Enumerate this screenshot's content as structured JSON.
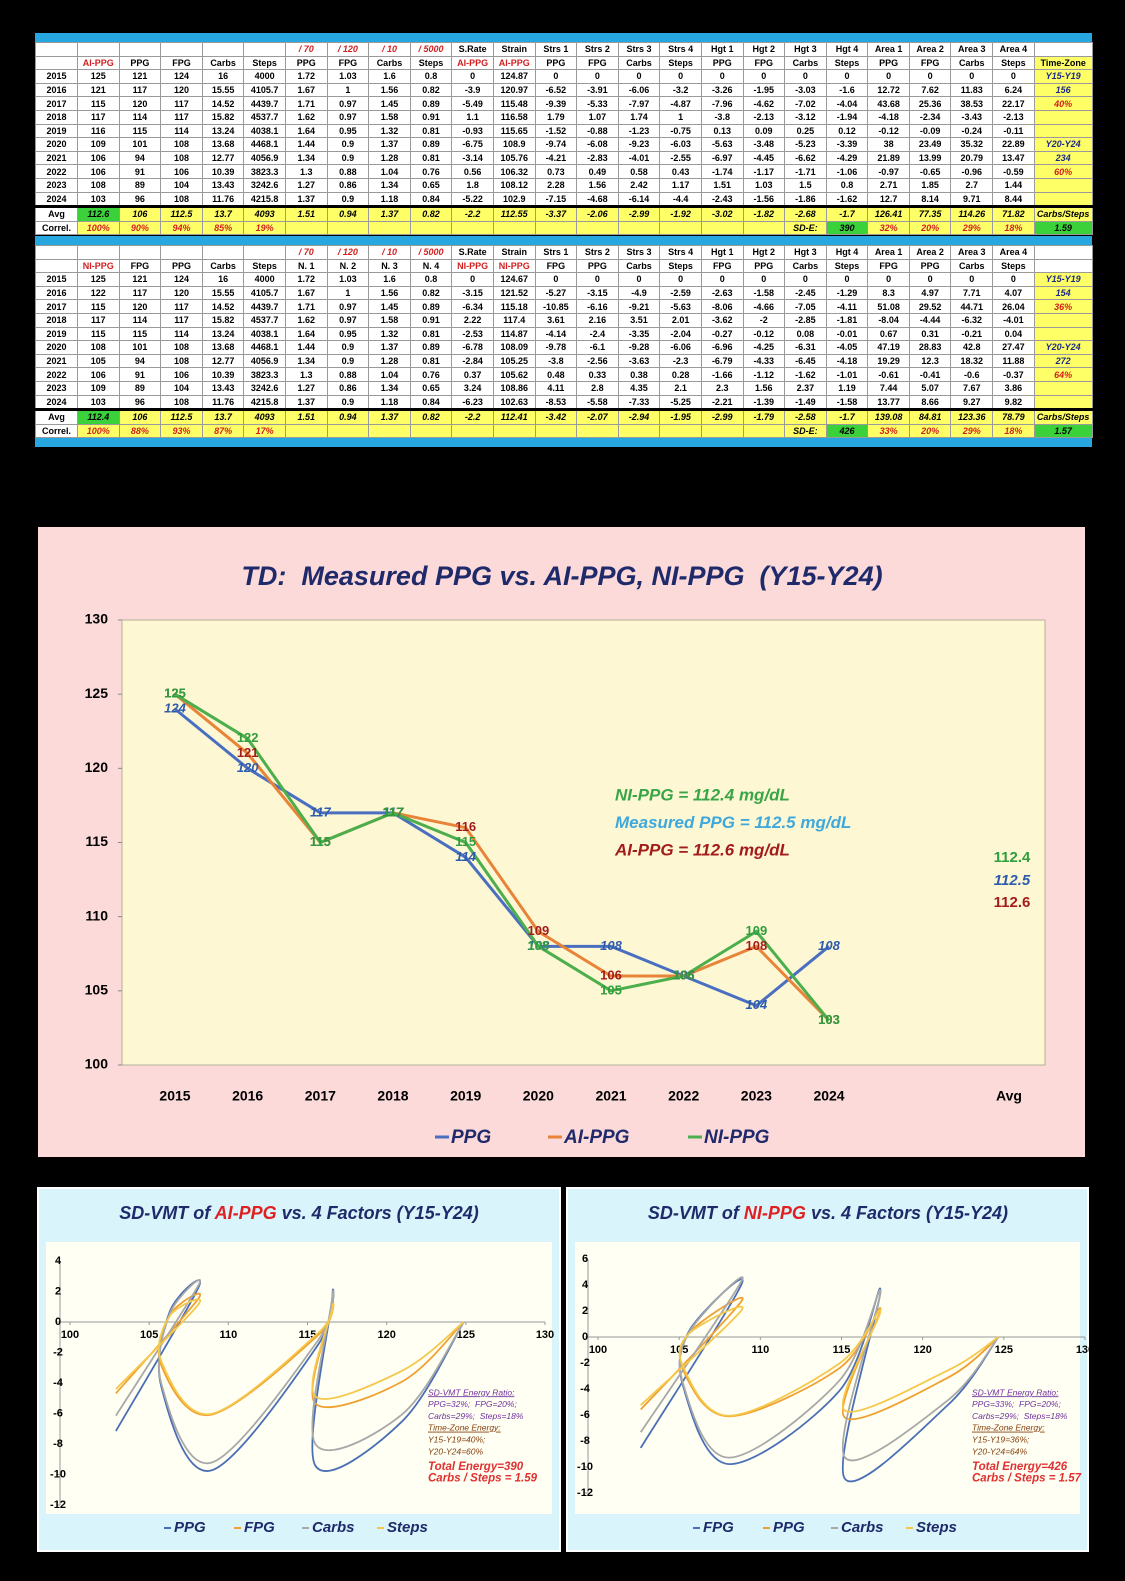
{
  "tables": [
    {
      "header_rows": [
        [
          null,
          null,
          null,
          null,
          null,
          null,
          "/ 70",
          "/ 120",
          "/ 10",
          "/ 5000",
          "S.Rate",
          "Strain",
          "Strs 1",
          "Strs 2",
          "Strs 3",
          "Strs 4",
          "Hgt 1",
          "Hgt 2",
          "Hgt 3",
          "Hgt 4",
          "Area 1",
          "Area 2",
          "Area 3",
          "Area 4",
          null
        ],
        [
          null,
          "AI-PPG",
          "PPG",
          "FPG",
          "Carbs",
          "Steps",
          "PPG",
          "FPG",
          "Carbs",
          "Steps",
          "AI-PPG",
          "AI-PPG",
          "PPG",
          "FPG",
          "Carbs",
          "Steps",
          "PPG",
          "FPG",
          "Carbs",
          "Steps",
          "PPG",
          "FPG",
          "Carbs",
          "Steps",
          "Time-Zone"
        ]
      ],
      "rows": [
        [
          2015,
          125,
          121,
          124,
          16,
          4000,
          1.72,
          1.03,
          1.6,
          0.8,
          0,
          124.87,
          0,
          0,
          0,
          0,
          0,
          0,
          0,
          0,
          0,
          0,
          0,
          0,
          "Y15-Y19"
        ],
        [
          2016,
          121,
          117,
          120,
          15.55,
          4105.7,
          1.67,
          1,
          1.56,
          0.82,
          -3.9,
          120.97,
          -6.52,
          -3.91,
          -6.06,
          -3.2,
          -3.26,
          -1.95,
          -3.03,
          -1.6,
          12.72,
          7.62,
          11.83,
          6.24,
          156
        ],
        [
          2017,
          115,
          120,
          117,
          14.52,
          4439.7,
          1.71,
          0.97,
          1.45,
          0.89,
          -5.49,
          115.48,
          -9.39,
          -5.33,
          -7.97,
          -4.87,
          -7.96,
          -4.62,
          -7.02,
          -4.04,
          43.68,
          25.36,
          38.53,
          22.17,
          "40%"
        ],
        [
          2018,
          117,
          114,
          117,
          15.82,
          4537.7,
          1.62,
          0.97,
          1.58,
          0.91,
          1.1,
          116.58,
          1.79,
          1.07,
          1.74,
          1,
          -3.8,
          -2.13,
          -3.12,
          -1.94,
          -4.18,
          -2.34,
          -3.43,
          -2.13,
          null
        ],
        [
          2019,
          116,
          115,
          114,
          13.24,
          4038.1,
          1.64,
          0.95,
          1.32,
          0.81,
          -0.93,
          115.65,
          -1.52,
          -0.88,
          -1.23,
          -0.75,
          0.13,
          0.09,
          0.25,
          0.12,
          -0.12,
          -0.09,
          -0.24,
          -0.11,
          null
        ],
        [
          2020,
          109,
          101,
          108,
          13.68,
          4468.1,
          1.44,
          0.9,
          1.37,
          0.89,
          -6.75,
          108.9,
          -9.74,
          -6.08,
          -9.23,
          -6.03,
          -5.63,
          -3.48,
          -5.23,
          -3.39,
          38,
          23.49,
          35.32,
          22.89,
          "Y20-Y24"
        ],
        [
          2021,
          106,
          94,
          108,
          12.77,
          4056.9,
          1.34,
          0.9,
          1.28,
          0.81,
          -3.14,
          105.76,
          -4.21,
          -2.83,
          -4.01,
          -2.55,
          -6.97,
          -4.45,
          -6.62,
          -4.29,
          21.89,
          13.99,
          20.79,
          13.47,
          234
        ],
        [
          2022,
          106,
          91,
          106,
          10.39,
          3823.3,
          1.3,
          0.88,
          1.04,
          0.76,
          0.56,
          106.32,
          0.73,
          0.49,
          0.58,
          0.43,
          -1.74,
          -1.17,
          -1.71,
          -1.06,
          -0.97,
          -0.65,
          -0.96,
          -0.59,
          "60%"
        ],
        [
          2023,
          108,
          89,
          104,
          13.43,
          3242.6,
          1.27,
          0.86,
          1.34,
          0.65,
          1.8,
          108.12,
          2.28,
          1.56,
          2.42,
          1.17,
          1.51,
          1.03,
          1.5,
          0.8,
          2.71,
          1.85,
          2.7,
          1.44,
          null
        ],
        [
          2024,
          103,
          96,
          108,
          11.76,
          4215.8,
          1.37,
          0.9,
          1.18,
          0.84,
          -5.22,
          102.9,
          -7.15,
          -4.68,
          -6.14,
          -4.4,
          -2.43,
          -1.56,
          -1.86,
          -1.62,
          12.7,
          8.14,
          9.71,
          8.44,
          null
        ],
        [
          "Avg",
          112.6,
          106,
          112.5,
          13.7,
          4093,
          1.51,
          0.94,
          1.37,
          0.82,
          -2.2,
          112.55,
          -3.37,
          -2.06,
          -2.99,
          -1.92,
          -3.02,
          -1.82,
          -2.68,
          -1.7,
          126.41,
          77.35,
          114.26,
          71.82,
          "Carbs/Steps"
        ],
        [
          "Correl.",
          "100%",
          "90%",
          "94%",
          "85%",
          "19%",
          null,
          null,
          null,
          null,
          null,
          null,
          null,
          null,
          null,
          null,
          null,
          null,
          "SD-E:",
          390,
          "32%",
          "20%",
          "29%",
          "18%",
          1.59
        ]
      ]
    },
    {
      "header_rows": [
        [
          null,
          null,
          null,
          null,
          null,
          null,
          "/ 70",
          "/ 120",
          "/ 10",
          "/ 5000",
          "S.Rate",
          "Strain",
          "Strs 1",
          "Strs 2",
          "Strs 3",
          "Strs 4",
          "Hgt 1",
          "Hgt 2",
          "Hgt 3",
          "Hgt 4",
          "Area 1",
          "Area 2",
          "Area 3",
          "Area 4",
          null
        ],
        [
          null,
          "NI-PPG",
          "FPG",
          "PPG",
          "Carbs",
          "Steps",
          "N. 1",
          "N. 2",
          "N. 3",
          "N. 4",
          "NI-PPG",
          "NI-PPG",
          "FPG",
          "PPG",
          "Carbs",
          "Steps",
          "FPG",
          "PPG",
          "Carbs",
          "Steps",
          "FPG",
          "PPG",
          "Carbs",
          "Steps",
          null
        ]
      ],
      "rows": [
        [
          2015,
          125,
          121,
          124,
          16,
          4000,
          1.72,
          1.03,
          1.6,
          0.8,
          0,
          124.67,
          0,
          0,
          0,
          0,
          0,
          0,
          0,
          0,
          0,
          0,
          0,
          0,
          "Y15-Y19"
        ],
        [
          2016,
          122,
          117,
          120,
          15.55,
          4105.7,
          1.67,
          1,
          1.56,
          0.82,
          -3.15,
          121.52,
          -5.27,
          -3.15,
          -4.9,
          -2.59,
          -2.63,
          -1.58,
          -2.45,
          -1.29,
          8.3,
          4.97,
          7.71,
          4.07,
          154
        ],
        [
          2017,
          115,
          120,
          117,
          14.52,
          4439.7,
          1.71,
          0.97,
          1.45,
          0.89,
          -6.34,
          115.18,
          -10.85,
          -6.16,
          -9.21,
          -5.63,
          -8.06,
          -4.66,
          -7.05,
          -4.11,
          51.08,
          29.52,
          44.71,
          26.04,
          "36%"
        ],
        [
          2018,
          117,
          114,
          117,
          15.82,
          4537.7,
          1.62,
          0.97,
          1.58,
          0.91,
          2.22,
          117.4,
          3.61,
          2.16,
          3.51,
          2.01,
          -3.62,
          -2,
          -2.85,
          -1.81,
          -8.04,
          -4.44,
          -6.32,
          -4.01,
          null
        ],
        [
          2019,
          115,
          115,
          114,
          13.24,
          4038.1,
          1.64,
          0.95,
          1.32,
          0.81,
          -2.53,
          114.87,
          -4.14,
          -2.4,
          -3.35,
          -2.04,
          -0.27,
          -0.12,
          0.08,
          -0.01,
          0.67,
          0.31,
          -0.21,
          0.04,
          null
        ],
        [
          2020,
          108,
          101,
          108,
          13.68,
          4468.1,
          1.44,
          0.9,
          1.37,
          0.89,
          -6.78,
          108.09,
          -9.78,
          -6.1,
          -9.28,
          -6.06,
          -6.96,
          -4.25,
          -6.31,
          -4.05,
          47.19,
          28.83,
          42.8,
          27.47,
          "Y20-Y24"
        ],
        [
          2021,
          105,
          94,
          108,
          12.77,
          4056.9,
          1.34,
          0.9,
          1.28,
          0.81,
          -2.84,
          105.25,
          -3.8,
          -2.56,
          -3.63,
          -2.3,
          -6.79,
          -4.33,
          -6.45,
          -4.18,
          19.29,
          12.3,
          18.32,
          11.88,
          272
        ],
        [
          2022,
          106,
          91,
          106,
          10.39,
          3823.3,
          1.3,
          0.88,
          1.04,
          0.76,
          0.37,
          105.62,
          0.48,
          0.33,
          0.38,
          0.28,
          -1.66,
          -1.12,
          -1.62,
          -1.01,
          -0.61,
          -0.41,
          -0.6,
          -0.37,
          "64%"
        ],
        [
          2023,
          109,
          89,
          104,
          13.43,
          3242.6,
          1.27,
          0.86,
          1.34,
          0.65,
          3.24,
          108.86,
          4.11,
          2.8,
          4.35,
          2.1,
          2.3,
          1.56,
          2.37,
          1.19,
          7.44,
          5.07,
          7.67,
          3.86,
          null
        ],
        [
          2024,
          103,
          96,
          108,
          11.76,
          4215.8,
          1.37,
          0.9,
          1.18,
          0.84,
          -6.23,
          102.63,
          -8.53,
          -5.58,
          -7.33,
          -5.25,
          -2.21,
          -1.39,
          -1.49,
          -1.58,
          13.77,
          8.66,
          9.27,
          9.82,
          null
        ],
        [
          "Avg",
          112.4,
          106,
          112.5,
          13.7,
          4093,
          1.51,
          0.94,
          1.37,
          0.82,
          -2.2,
          112.41,
          -3.42,
          -2.07,
          -2.94,
          -1.95,
          -2.99,
          -1.79,
          -2.58,
          -1.7,
          139.08,
          84.81,
          123.36,
          78.79,
          "Carbs/Steps"
        ],
        [
          "Correl.",
          "100%",
          "88%",
          "93%",
          "87%",
          "17%",
          null,
          null,
          null,
          null,
          null,
          null,
          null,
          null,
          null,
          null,
          null,
          null,
          "SD-E:",
          426,
          "33%",
          "20%",
          "29%",
          "18%",
          1.57
        ]
      ]
    }
  ],
  "chart_data": [
    {
      "type": "line",
      "title": "TD:  Measured PPG vs. AI-PPG, NI-PPG  (Y15-Y24)",
      "categories": [
        2015,
        2016,
        2017,
        2018,
        2019,
        2020,
        2021,
        2022,
        2023,
        2024
      ],
      "avg_label": "Avg",
      "series": [
        {
          "name": "PPG",
          "color": "#4a6fc0",
          "label_color": "#2d5cae",
          "values": [
            124,
            120,
            117,
            117,
            114,
            108,
            108,
            106,
            104,
            108
          ],
          "avg": 112.5
        },
        {
          "name": "AI-PPG",
          "color": "#e8833a",
          "label_color": "#a31c1c",
          "values": [
            125,
            121,
            115,
            117,
            116,
            109,
            106,
            106,
            108,
            103
          ],
          "avg": 112.6
        },
        {
          "name": "NI-PPG",
          "color": "#4cae4c",
          "label_color": "#2f9e3f",
          "values": [
            125,
            122,
            115,
            117,
            115,
            108,
            105,
            106,
            109,
            103
          ],
          "avg": 112.4
        }
      ],
      "annotations": [
        {
          "text": "NI-PPG = 112.4 mg/dL",
          "color": "#3aa547"
        },
        {
          "text": "Measured PPG = 112.5 mg/dL",
          "color": "#3fa8dc"
        },
        {
          "text": "AI-PPG = 112.6 mg/dL",
          "color": "#a31c1c"
        }
      ],
      "ylim": [
        100,
        130
      ],
      "yticks": [
        100,
        105,
        110,
        115,
        120,
        125,
        130
      ],
      "grid": false
    },
    {
      "type": "phase",
      "title": [
        "SD-VMT of",
        "AI-PPG",
        "vs. 4 Factors  (Y15-Y24)"
      ],
      "x": [
        124.87,
        120.97,
        115.48,
        116.58,
        115.65,
        108.9,
        105.76,
        106.32,
        108.12,
        102.9
      ],
      "series": [
        {
          "name": "PPG",
          "color": "#4a6fb5",
          "values": [
            0,
            -6.52,
            -9.39,
            1.79,
            -1.52,
            -9.74,
            -4.21,
            0.73,
            2.28,
            -7.15
          ]
        },
        {
          "name": "FPG",
          "color": "#f0a030",
          "values": [
            0,
            -3.91,
            -5.33,
            1.07,
            -0.88,
            -6.08,
            -2.83,
            0.49,
            1.56,
            -4.68
          ]
        },
        {
          "name": "Carbs",
          "color": "#a8a8a8",
          "values": [
            0,
            -6.06,
            -7.97,
            1.74,
            -1.23,
            -9.23,
            -4.01,
            0.58,
            2.42,
            -6.14
          ]
        },
        {
          "name": "Steps",
          "color": "#f5c84c",
          "values": [
            0,
            -3.2,
            -4.87,
            1,
            -0.75,
            -6.03,
            -2.55,
            0.43,
            1.17,
            -4.4
          ]
        }
      ],
      "annotations": [
        "SD-VMT Energy Ratio:",
        "PPG=32%;  FPG=20%;",
        "Carbs=29%;  Steps=18%",
        "Time-Zone Energy:",
        "Y15-Y19=40%;",
        "Y20-Y24=60%",
        "Total Energy=390",
        "Carbs / Steps = 1.59"
      ],
      "xlim": [
        100,
        130
      ],
      "xticks": [
        100,
        105,
        110,
        115,
        120,
        125,
        130
      ],
      "ylim": [
        -12,
        4
      ],
      "yticks": [
        -12,
        -10,
        -8,
        -6,
        -4,
        -2,
        0,
        2,
        4
      ]
    },
    {
      "type": "phase",
      "title": [
        "SD-VMT of",
        "NI-PPG",
        "vs. 4 Factors  (Y15-Y24)"
      ],
      "x": [
        124.67,
        121.52,
        115.18,
        117.4,
        114.87,
        108.09,
        105.25,
        105.62,
        108.86,
        102.63
      ],
      "series": [
        {
          "name": "FPG",
          "color": "#4a6fb5",
          "values": [
            0,
            -5.27,
            -10.85,
            3.61,
            -4.14,
            -9.78,
            -3.8,
            0.48,
            4.11,
            -8.53
          ]
        },
        {
          "name": "PPG",
          "color": "#f0a030",
          "values": [
            0,
            -3.15,
            -6.16,
            2.16,
            -2.4,
            -6.1,
            -2.56,
            0.33,
            2.8,
            -5.58
          ]
        },
        {
          "name": "Carbs",
          "color": "#a8a8a8",
          "values": [
            0,
            -4.9,
            -9.21,
            3.51,
            -3.35,
            -9.28,
            -3.63,
            0.38,
            4.35,
            -7.33
          ]
        },
        {
          "name": "Steps",
          "color": "#f5c84c",
          "values": [
            0,
            -2.59,
            -5.63,
            2.01,
            -2.04,
            -6.06,
            -2.3,
            0.28,
            2.1,
            -5.25
          ]
        }
      ],
      "annotations": [
        "SD-VMT Energy Ratio:",
        "PPG=33%;  FPG=20%;",
        "Carbs=29%;  Steps=18%",
        "Time-Zone Energy:",
        "Y15-Y19=36%;",
        "Y20-Y24=64%",
        "Total Energy=426",
        "Carbs / Steps = 1.57"
      ],
      "xlim": [
        100,
        130
      ],
      "xticks": [
        100,
        105,
        110,
        115,
        120,
        125,
        130
      ],
      "ylim": [
        -12,
        6
      ],
      "yticks": [
        -12,
        -10,
        -8,
        -6,
        -4,
        -2,
        0,
        2,
        4,
        6
      ]
    }
  ]
}
